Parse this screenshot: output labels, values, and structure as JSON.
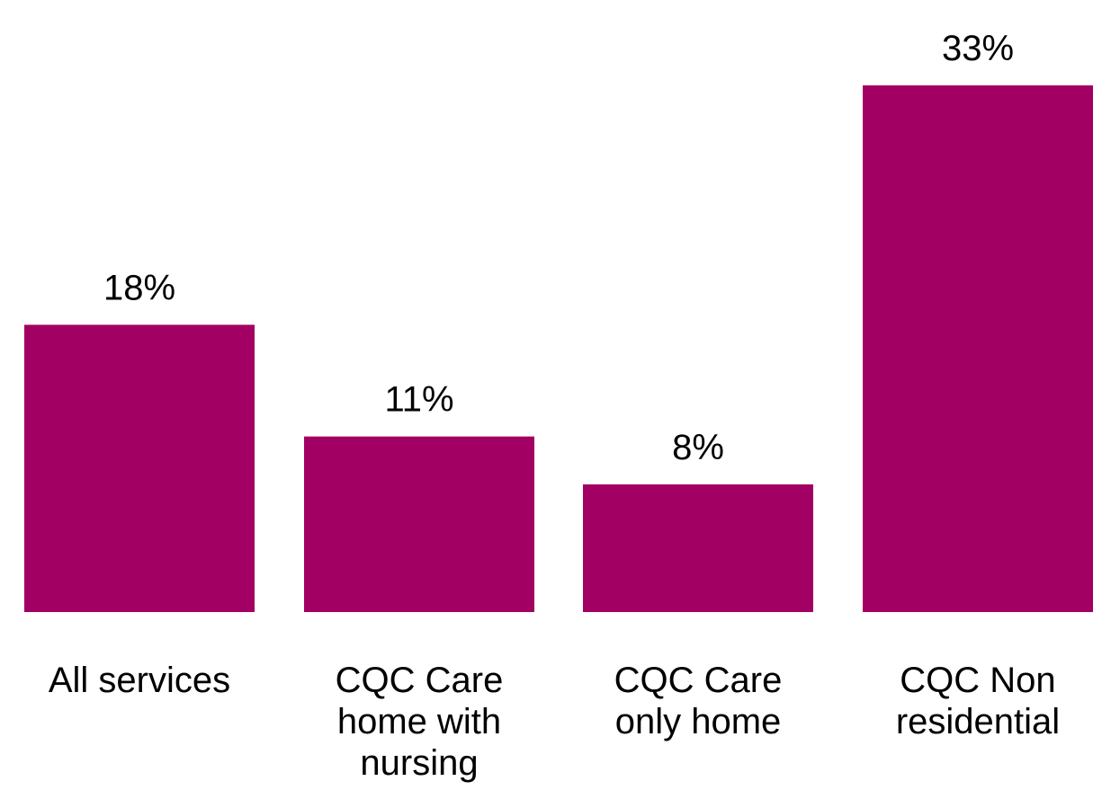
{
  "chart_data": {
    "type": "bar",
    "categories": [
      [
        "All services"
      ],
      [
        "CQC Care",
        "home with",
        "nursing"
      ],
      [
        "CQC Care",
        "only home"
      ],
      [
        "CQC Non",
        "residential"
      ]
    ],
    "values": [
      18,
      11,
      8,
      33
    ],
    "value_labels": [
      "18%",
      "11%",
      "8%",
      "33%"
    ],
    "unit": "%",
    "ylim": [
      0,
      35
    ],
    "grid": false,
    "bar_color": "#A20062"
  }
}
